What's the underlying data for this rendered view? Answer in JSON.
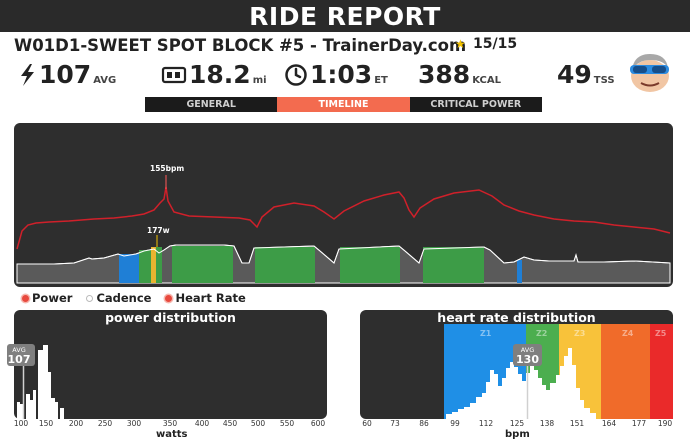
{
  "header": {
    "title": "RIDE REPORT"
  },
  "workout": {
    "name": "W01D1-SWEET SPOT BLOCK #5 - TrainerDay.com",
    "progress": "15/15"
  },
  "stats": [
    {
      "value": "107",
      "unit": "AVG",
      "icon": "lightning-icon"
    },
    {
      "value": "18.2",
      "unit": "mi",
      "icon": "odometer-icon"
    },
    {
      "value": "1:03",
      "unit": "ET",
      "icon": "clock-icon"
    },
    {
      "value": "388",
      "unit": "KCAL",
      "icon": ""
    },
    {
      "value": "49",
      "unit": "TSS",
      "icon": ""
    }
  ],
  "tabs": [
    {
      "label": "GENERAL",
      "active": false
    },
    {
      "label": "TIMELINE",
      "active": true
    },
    {
      "label": "CRITICAL POWER",
      "active": false
    }
  ],
  "timeline": {
    "hr_peak_label": "155bpm",
    "power_peak_label": "177w",
    "hr_color": "#d0202a",
    "power_color": "#ffffff"
  },
  "legend": [
    {
      "label": "Power",
      "color": "#e8493e"
    },
    {
      "label": "Cadence",
      "color": "#ffffff"
    },
    {
      "label": "Heart Rate",
      "color": "#e8493e"
    }
  ],
  "power_distribution": {
    "title": "power distribution",
    "avg_label": "AVG",
    "avg_value": "107",
    "xlabel": "watts",
    "ticks": [
      "100",
      "150",
      "200",
      "250",
      "300",
      "350",
      "400",
      "450",
      "500",
      "550",
      "600"
    ]
  },
  "hr_distribution": {
    "title": "heart rate distribution",
    "avg_label": "AVG",
    "avg_value": "130",
    "xlabel": "bpm",
    "ticks": [
      "60",
      "73",
      "86",
      "99",
      "112",
      "125",
      "138",
      "151",
      "164",
      "177",
      "190"
    ],
    "zones": [
      {
        "label": "Z1",
        "color": "#1f8fe6"
      },
      {
        "label": "Z2",
        "color": "#4cae4f"
      },
      {
        "label": "Z3",
        "color": "#f8c23a"
      },
      {
        "label": "Z4",
        "color": "#f06b2a"
      },
      {
        "label": "Z5",
        "color": "#ea2a2a"
      }
    ]
  }
}
